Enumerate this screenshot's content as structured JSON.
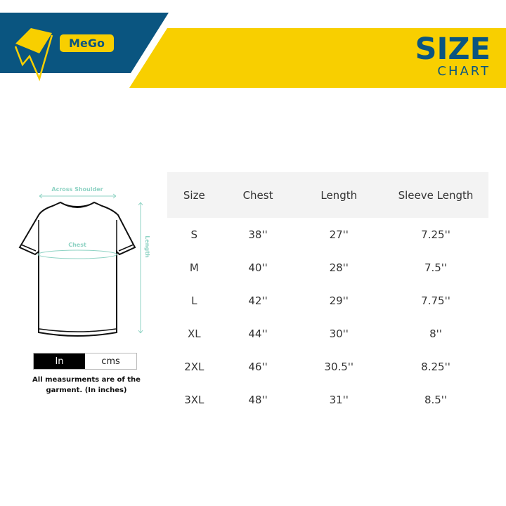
{
  "brand": {
    "name": "MeGo",
    "colors": {
      "blue": "#0a5580",
      "yellow": "#f8cf00"
    }
  },
  "title": {
    "main": "SIZE",
    "sub": "CHART"
  },
  "diagram": {
    "across_shoulder": "Across Shoulder",
    "chest": "Chest",
    "length": "Length"
  },
  "units": {
    "options": [
      "In",
      "cms"
    ],
    "selected": "In"
  },
  "note": "All measurments are of the garment. (In inches)",
  "table": {
    "headers": [
      "Size",
      "Chest",
      "Length",
      "Sleeve Length"
    ],
    "rows": [
      [
        "S",
        "38''",
        "27''",
        "7.25''"
      ],
      [
        "M",
        "40''",
        "28''",
        "7.5''"
      ],
      [
        "L",
        "42''",
        "29''",
        "7.75''"
      ],
      [
        "XL",
        "44''",
        "30''",
        "8''"
      ],
      [
        "2XL",
        "46''",
        "30.5''",
        "8.25''"
      ],
      [
        "3XL",
        "48''",
        "31''",
        "8.5''"
      ]
    ]
  }
}
